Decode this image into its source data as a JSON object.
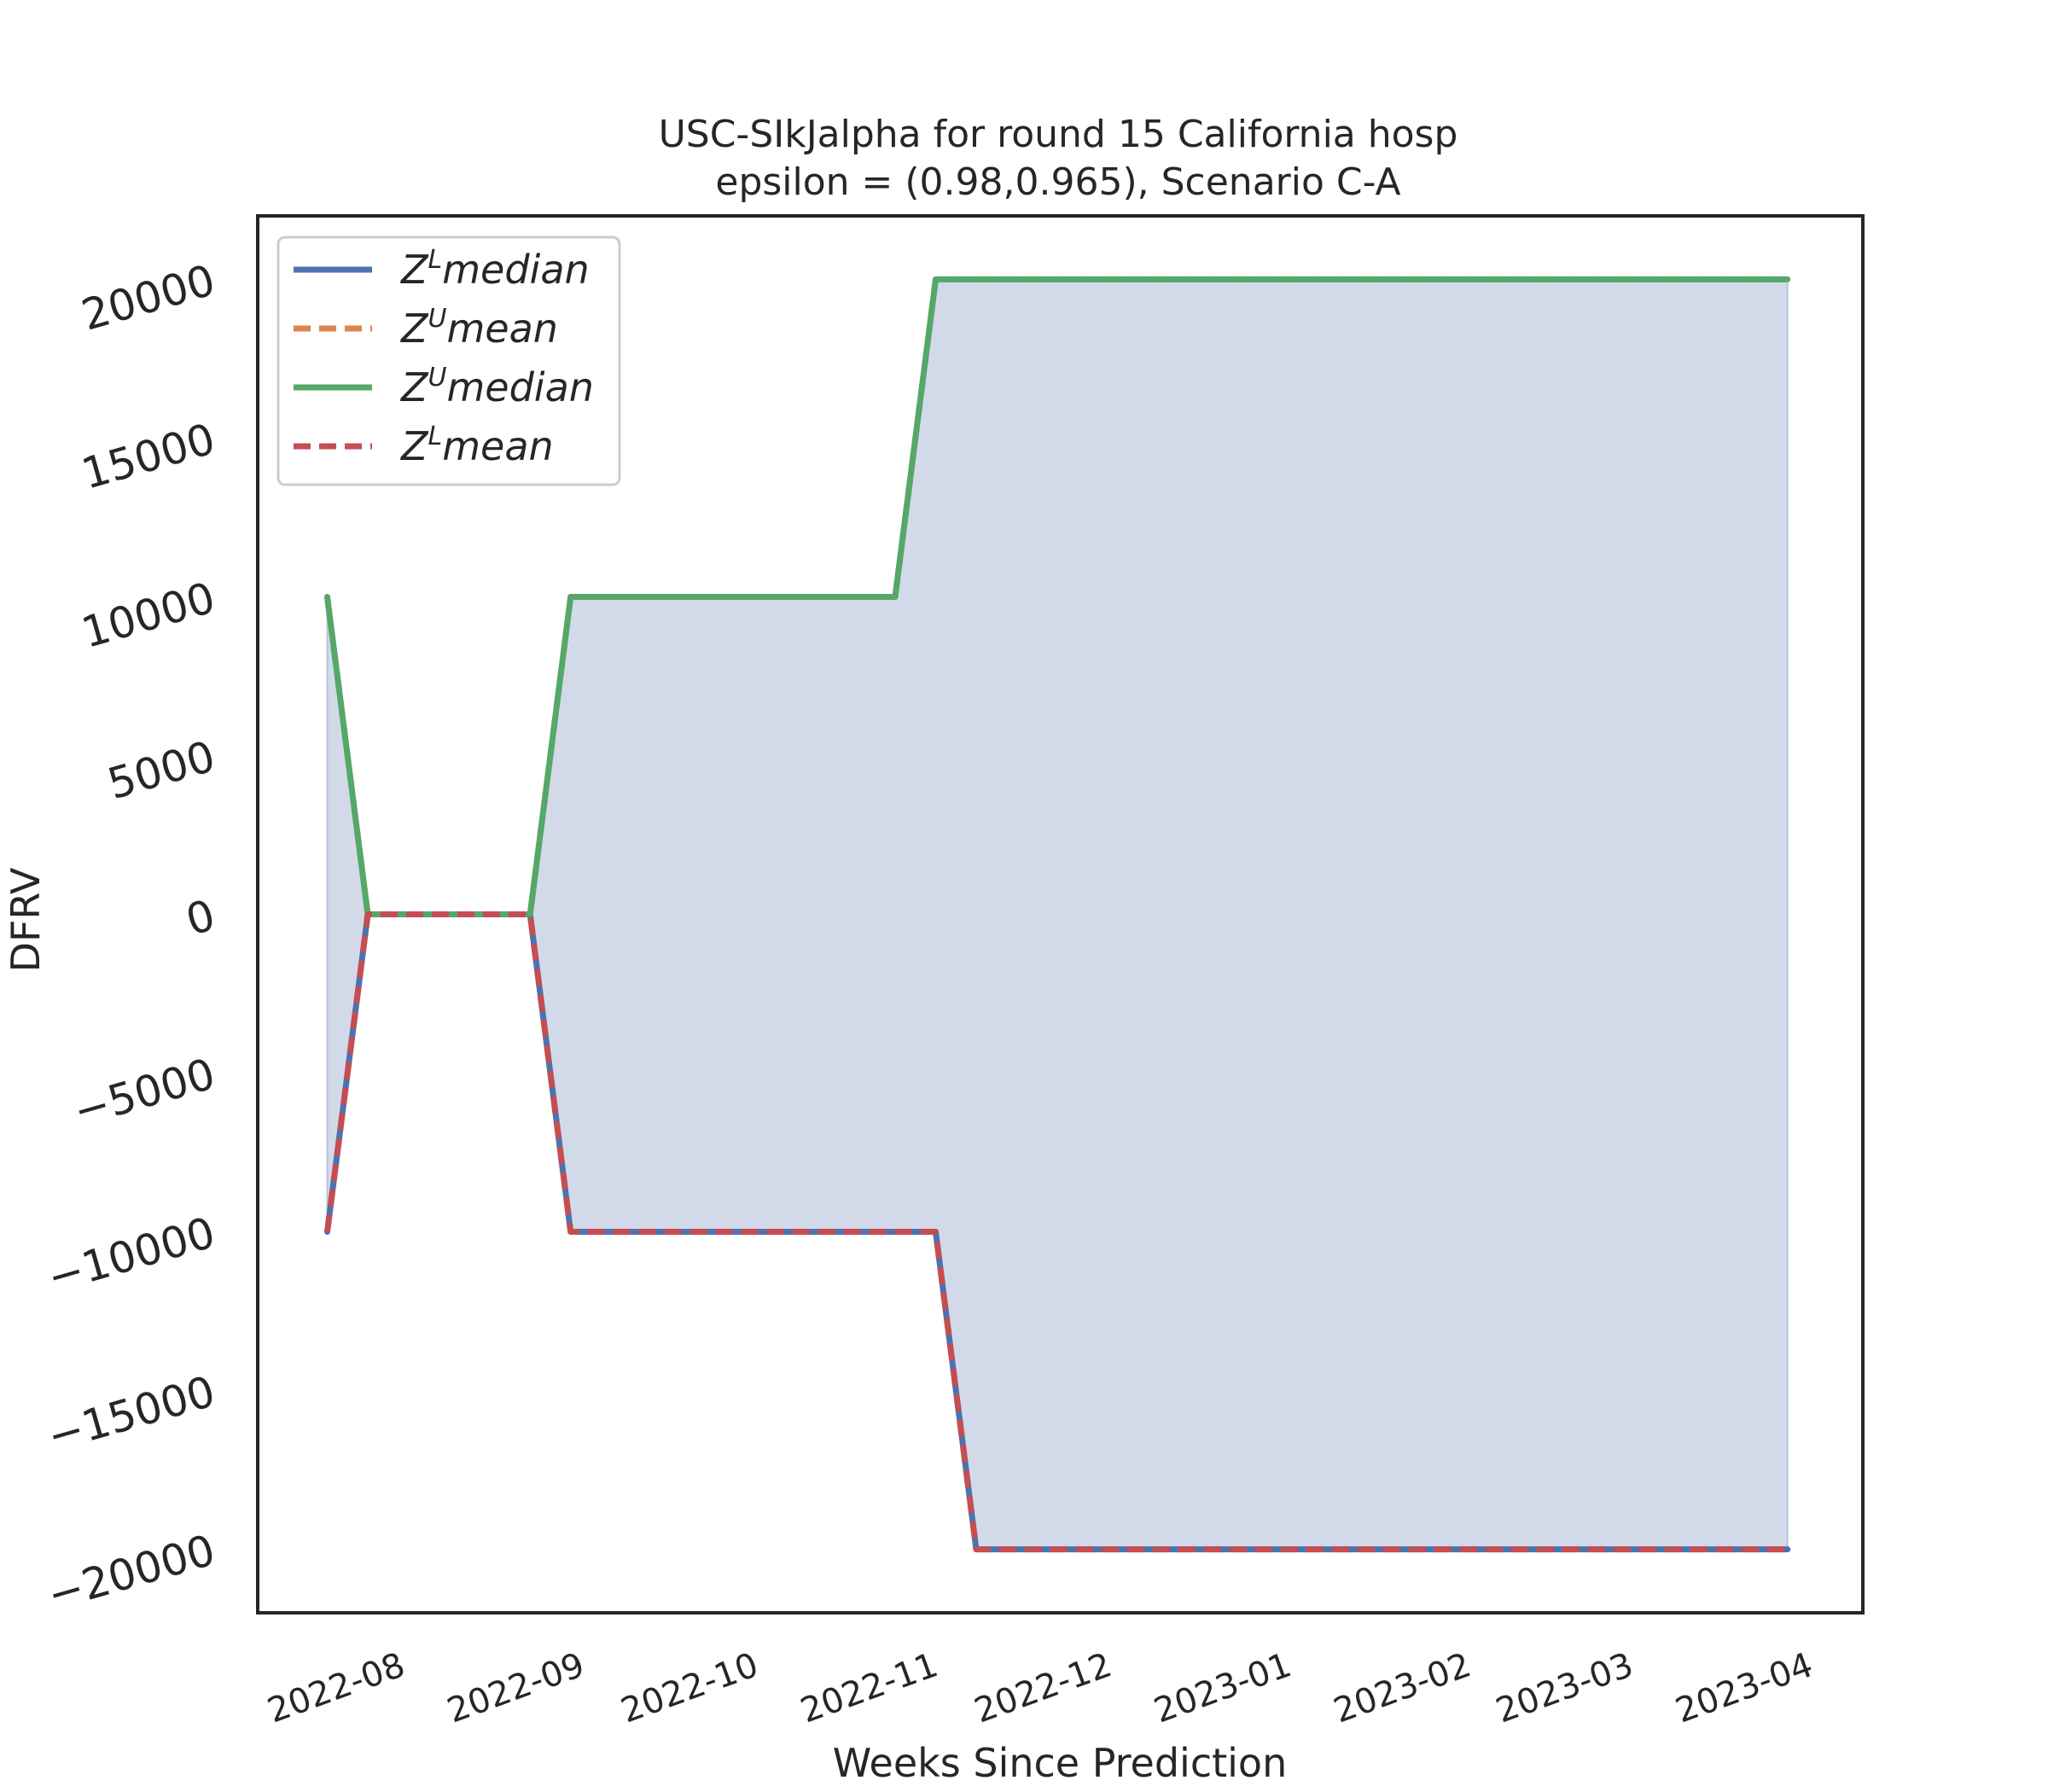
{
  "chart_data": {
    "type": "area",
    "title": "USC-SIkJalpha for round 15 California  hosp",
    "subtitle": "epsilon = (0.98,0.965), Scenario C-A",
    "xlabel": "Weeks Since Prediction",
    "ylabel": "DFRV",
    "x_type": "date",
    "x_range": [
      "2022-07-08",
      "2023-04-11"
    ],
    "ylim": [
      -22000,
      22000
    ],
    "y_ticks": [
      -20000,
      -15000,
      -10000,
      -5000,
      0,
      5000,
      10000,
      15000,
      20000
    ],
    "y_tick_labels": [
      "−20000",
      "−15000",
      "−10000",
      "−5000",
      "0",
      "5000",
      "10000",
      "15000",
      "20000"
    ],
    "x_ticks": [
      "2022-08-01",
      "2022-09-01",
      "2022-10-01",
      "2022-11-01",
      "2022-12-01",
      "2023-01-01",
      "2023-02-01",
      "2023-03-01",
      "2023-04-01"
    ],
    "x_tick_labels": [
      "2022-08",
      "2022-09",
      "2022-10",
      "2022-11",
      "2022-12",
      "2023-01",
      "2023-02",
      "2023-03",
      "2023-04"
    ],
    "x": [
      "2022-07-20",
      "2022-07-27",
      "2022-08-03",
      "2022-08-10",
      "2022-08-17",
      "2022-08-24",
      "2022-08-31",
      "2022-09-07",
      "2022-09-14",
      "2022-09-21",
      "2022-09-28",
      "2022-10-05",
      "2022-10-12",
      "2022-10-19",
      "2022-10-26",
      "2022-11-02",
      "2022-11-09",
      "2022-11-16",
      "2022-11-23",
      "2022-11-30",
      "2022-12-07",
      "2022-12-14",
      "2022-12-21",
      "2022-12-28",
      "2023-01-04",
      "2023-01-11",
      "2023-01-18",
      "2023-01-25",
      "2023-02-01",
      "2023-02-08",
      "2023-02-15",
      "2023-02-22",
      "2023-03-01",
      "2023-03-08",
      "2023-03-15",
      "2023-03-22",
      "2023-03-29"
    ],
    "series": [
      {
        "name": "Z^L median",
        "color": "#4c72b0",
        "style": "solid",
        "values": [
          -10000,
          0,
          0,
          0,
          0,
          0,
          -10000,
          -10000,
          -10000,
          -10000,
          -10000,
          -10000,
          -10000,
          -10000,
          -10000,
          -10000,
          -20000,
          -20000,
          -20000,
          -20000,
          -20000,
          -20000,
          -20000,
          -20000,
          -20000,
          -20000,
          -20000,
          -20000,
          -20000,
          -20000,
          -20000,
          -20000,
          -20000,
          -20000,
          -20000,
          -20000,
          -20000
        ]
      },
      {
        "name": "Z^U mean",
        "color": "#dd8452",
        "style": "dashed",
        "values": [
          10000,
          0,
          0,
          0,
          0,
          0,
          10000,
          10000,
          10000,
          10000,
          10000,
          10000,
          10000,
          10000,
          10000,
          20000,
          20000,
          20000,
          20000,
          20000,
          20000,
          20000,
          20000,
          20000,
          20000,
          20000,
          20000,
          20000,
          20000,
          20000,
          20000,
          20000,
          20000,
          20000,
          20000,
          20000,
          20000
        ]
      },
      {
        "name": "Z^U median",
        "color": "#55a868",
        "style": "solid",
        "values": [
          10000,
          0,
          0,
          0,
          0,
          0,
          10000,
          10000,
          10000,
          10000,
          10000,
          10000,
          10000,
          10000,
          10000,
          20000,
          20000,
          20000,
          20000,
          20000,
          20000,
          20000,
          20000,
          20000,
          20000,
          20000,
          20000,
          20000,
          20000,
          20000,
          20000,
          20000,
          20000,
          20000,
          20000,
          20000,
          20000
        ]
      },
      {
        "name": "Z^L mean",
        "color": "#c44e52",
        "style": "dashed",
        "values": [
          -10000,
          0,
          0,
          0,
          0,
          0,
          -10000,
          -10000,
          -10000,
          -10000,
          -10000,
          -10000,
          -10000,
          -10000,
          -10000,
          -10000,
          -20000,
          -20000,
          -20000,
          -20000,
          -20000,
          -20000,
          -20000,
          -20000,
          -20000,
          -20000,
          -20000,
          -20000,
          -20000,
          -20000,
          -20000,
          -20000,
          -20000,
          -20000,
          -20000,
          -20000,
          -20000
        ]
      }
    ],
    "fill_between": {
      "lower": "Z^L median",
      "upper": "Z^U median",
      "color": "#d2daea"
    },
    "legend": {
      "position": "top-left",
      "entries": [
        {
          "base": "Z",
          "sup": "L",
          "rest": "median",
          "color": "#4c72b0",
          "style": "solid"
        },
        {
          "base": "Z",
          "sup": "U",
          "rest": "mean",
          "color": "#dd8452",
          "style": "dashed"
        },
        {
          "base": "Z",
          "sup": "U",
          "rest": "median",
          "color": "#55a868",
          "style": "solid"
        },
        {
          "base": "Z",
          "sup": "L",
          "rest": "mean",
          "color": "#c44e52",
          "style": "dashed"
        }
      ]
    },
    "grid": false
  }
}
